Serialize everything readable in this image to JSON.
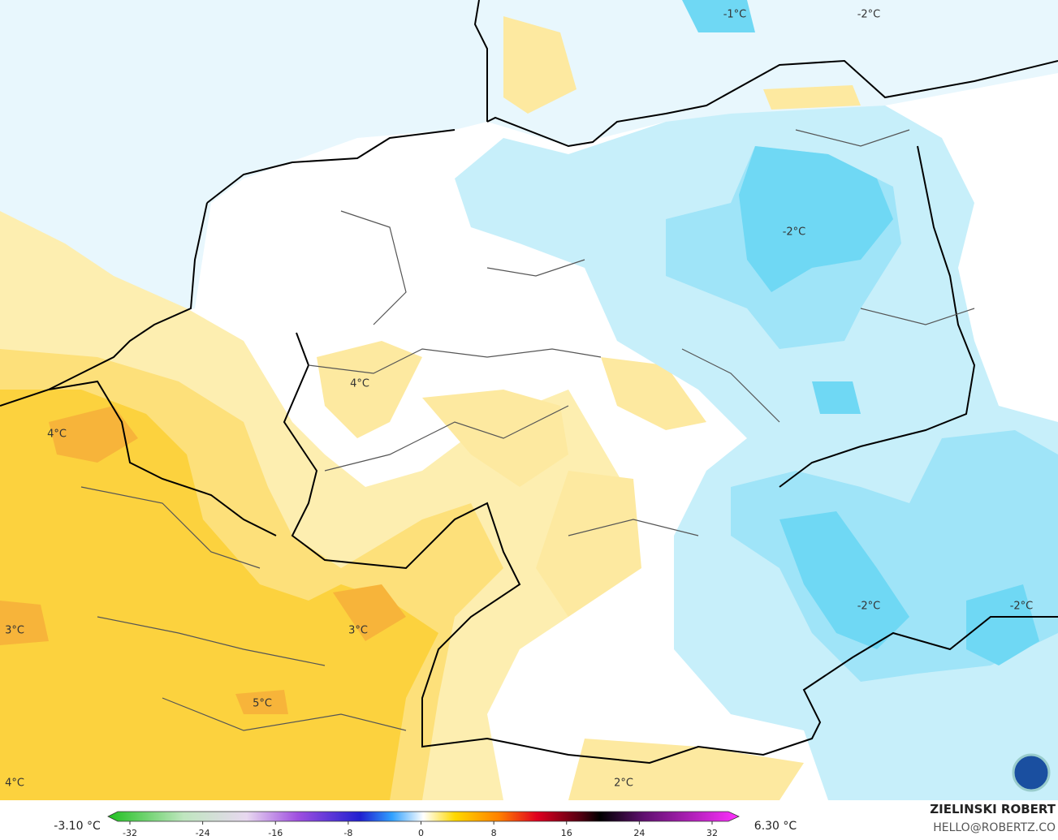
{
  "map": {
    "labels": [
      "-1°C",
      "-2°C",
      "-2°C",
      "4°C",
      "4°C",
      "3°C",
      "3°C",
      "5°C",
      "-2°C",
      "-2°C",
      "2°C",
      "4°C"
    ]
  },
  "legend": {
    "min": "-3.10 °C",
    "max": "6.30 °C",
    "ticks": [
      -32,
      -24,
      -16,
      -8,
      0,
      8,
      16,
      24,
      32
    ]
  },
  "credit": {
    "author": "ZIELINSKI ROBERT",
    "email": "HELLO@ROBERTZ.CO"
  }
}
